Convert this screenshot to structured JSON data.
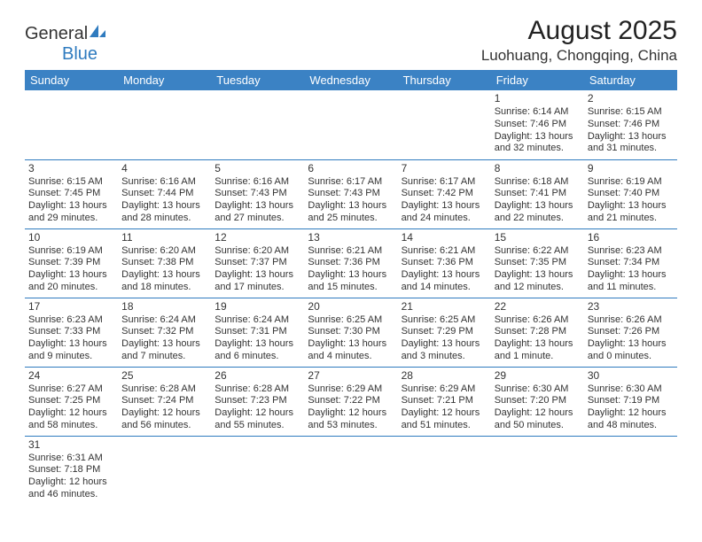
{
  "logo": {
    "text1": "General",
    "text2": "Blue"
  },
  "title": "August 2025",
  "location": "Luohuang, Chongqing, China",
  "colors": {
    "header_bg": "#3b82c4",
    "header_fg": "#ffffff",
    "cell_border": "#2f7bbf",
    "text": "#333333"
  },
  "weekdays": [
    "Sunday",
    "Monday",
    "Tuesday",
    "Wednesday",
    "Thursday",
    "Friday",
    "Saturday"
  ],
  "weeks": [
    [
      null,
      null,
      null,
      null,
      null,
      {
        "d": "1",
        "sr": "6:14 AM",
        "ss": "7:46 PM",
        "dl1": "Daylight: 13 hours",
        "dl2": "and 32 minutes."
      },
      {
        "d": "2",
        "sr": "6:15 AM",
        "ss": "7:46 PM",
        "dl1": "Daylight: 13 hours",
        "dl2": "and 31 minutes."
      }
    ],
    [
      {
        "d": "3",
        "sr": "6:15 AM",
        "ss": "7:45 PM",
        "dl1": "Daylight: 13 hours",
        "dl2": "and 29 minutes."
      },
      {
        "d": "4",
        "sr": "6:16 AM",
        "ss": "7:44 PM",
        "dl1": "Daylight: 13 hours",
        "dl2": "and 28 minutes."
      },
      {
        "d": "5",
        "sr": "6:16 AM",
        "ss": "7:43 PM",
        "dl1": "Daylight: 13 hours",
        "dl2": "and 27 minutes."
      },
      {
        "d": "6",
        "sr": "6:17 AM",
        "ss": "7:43 PM",
        "dl1": "Daylight: 13 hours",
        "dl2": "and 25 minutes."
      },
      {
        "d": "7",
        "sr": "6:17 AM",
        "ss": "7:42 PM",
        "dl1": "Daylight: 13 hours",
        "dl2": "and 24 minutes."
      },
      {
        "d": "8",
        "sr": "6:18 AM",
        "ss": "7:41 PM",
        "dl1": "Daylight: 13 hours",
        "dl2": "and 22 minutes."
      },
      {
        "d": "9",
        "sr": "6:19 AM",
        "ss": "7:40 PM",
        "dl1": "Daylight: 13 hours",
        "dl2": "and 21 minutes."
      }
    ],
    [
      {
        "d": "10",
        "sr": "6:19 AM",
        "ss": "7:39 PM",
        "dl1": "Daylight: 13 hours",
        "dl2": "and 20 minutes."
      },
      {
        "d": "11",
        "sr": "6:20 AM",
        "ss": "7:38 PM",
        "dl1": "Daylight: 13 hours",
        "dl2": "and 18 minutes."
      },
      {
        "d": "12",
        "sr": "6:20 AM",
        "ss": "7:37 PM",
        "dl1": "Daylight: 13 hours",
        "dl2": "and 17 minutes."
      },
      {
        "d": "13",
        "sr": "6:21 AM",
        "ss": "7:36 PM",
        "dl1": "Daylight: 13 hours",
        "dl2": "and 15 minutes."
      },
      {
        "d": "14",
        "sr": "6:21 AM",
        "ss": "7:36 PM",
        "dl1": "Daylight: 13 hours",
        "dl2": "and 14 minutes."
      },
      {
        "d": "15",
        "sr": "6:22 AM",
        "ss": "7:35 PM",
        "dl1": "Daylight: 13 hours",
        "dl2": "and 12 minutes."
      },
      {
        "d": "16",
        "sr": "6:23 AM",
        "ss": "7:34 PM",
        "dl1": "Daylight: 13 hours",
        "dl2": "and 11 minutes."
      }
    ],
    [
      {
        "d": "17",
        "sr": "6:23 AM",
        "ss": "7:33 PM",
        "dl1": "Daylight: 13 hours",
        "dl2": "and 9 minutes."
      },
      {
        "d": "18",
        "sr": "6:24 AM",
        "ss": "7:32 PM",
        "dl1": "Daylight: 13 hours",
        "dl2": "and 7 minutes."
      },
      {
        "d": "19",
        "sr": "6:24 AM",
        "ss": "7:31 PM",
        "dl1": "Daylight: 13 hours",
        "dl2": "and 6 minutes."
      },
      {
        "d": "20",
        "sr": "6:25 AM",
        "ss": "7:30 PM",
        "dl1": "Daylight: 13 hours",
        "dl2": "and 4 minutes."
      },
      {
        "d": "21",
        "sr": "6:25 AM",
        "ss": "7:29 PM",
        "dl1": "Daylight: 13 hours",
        "dl2": "and 3 minutes."
      },
      {
        "d": "22",
        "sr": "6:26 AM",
        "ss": "7:28 PM",
        "dl1": "Daylight: 13 hours",
        "dl2": "and 1 minute."
      },
      {
        "d": "23",
        "sr": "6:26 AM",
        "ss": "7:26 PM",
        "dl1": "Daylight: 13 hours",
        "dl2": "and 0 minutes."
      }
    ],
    [
      {
        "d": "24",
        "sr": "6:27 AM",
        "ss": "7:25 PM",
        "dl1": "Daylight: 12 hours",
        "dl2": "and 58 minutes."
      },
      {
        "d": "25",
        "sr": "6:28 AM",
        "ss": "7:24 PM",
        "dl1": "Daylight: 12 hours",
        "dl2": "and 56 minutes."
      },
      {
        "d": "26",
        "sr": "6:28 AM",
        "ss": "7:23 PM",
        "dl1": "Daylight: 12 hours",
        "dl2": "and 55 minutes."
      },
      {
        "d": "27",
        "sr": "6:29 AM",
        "ss": "7:22 PM",
        "dl1": "Daylight: 12 hours",
        "dl2": "and 53 minutes."
      },
      {
        "d": "28",
        "sr": "6:29 AM",
        "ss": "7:21 PM",
        "dl1": "Daylight: 12 hours",
        "dl2": "and 51 minutes."
      },
      {
        "d": "29",
        "sr": "6:30 AM",
        "ss": "7:20 PM",
        "dl1": "Daylight: 12 hours",
        "dl2": "and 50 minutes."
      },
      {
        "d": "30",
        "sr": "6:30 AM",
        "ss": "7:19 PM",
        "dl1": "Daylight: 12 hours",
        "dl2": "and 48 minutes."
      }
    ],
    [
      {
        "d": "31",
        "sr": "6:31 AM",
        "ss": "7:18 PM",
        "dl1": "Daylight: 12 hours",
        "dl2": "and 46 minutes."
      },
      null,
      null,
      null,
      null,
      null,
      null
    ]
  ]
}
